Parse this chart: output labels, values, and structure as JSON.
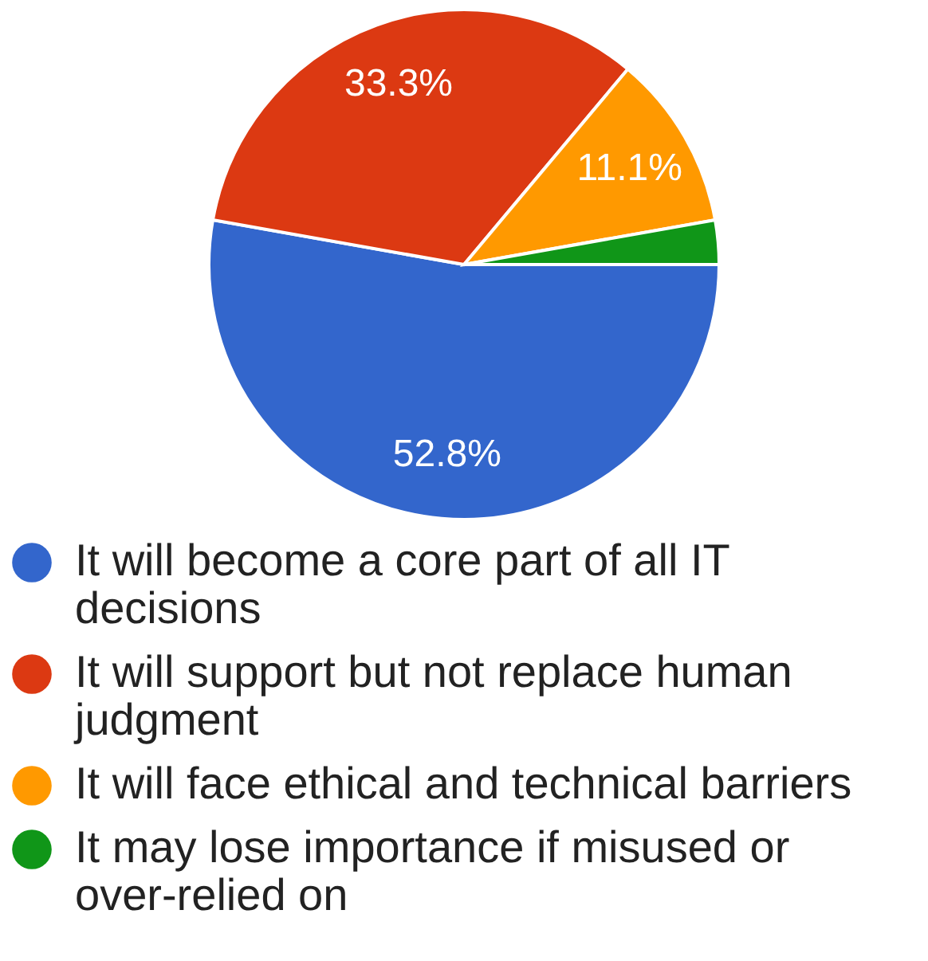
{
  "chart_data": {
    "type": "pie",
    "categories": [
      "It will become a core part of all IT decisions",
      "It will support but not replace human judgment",
      "It will face ethical and technical barriers",
      "It may lose importance if misused or over-relied on"
    ],
    "values": [
      52.8,
      33.3,
      11.1,
      2.8
    ],
    "colors": [
      "#3366cc",
      "#dc3912",
      "#ff9900",
      "#109618"
    ],
    "value_labels": [
      "52.8%",
      "33.3%",
      "11.1%",
      null
    ],
    "legend": "bottom"
  }
}
